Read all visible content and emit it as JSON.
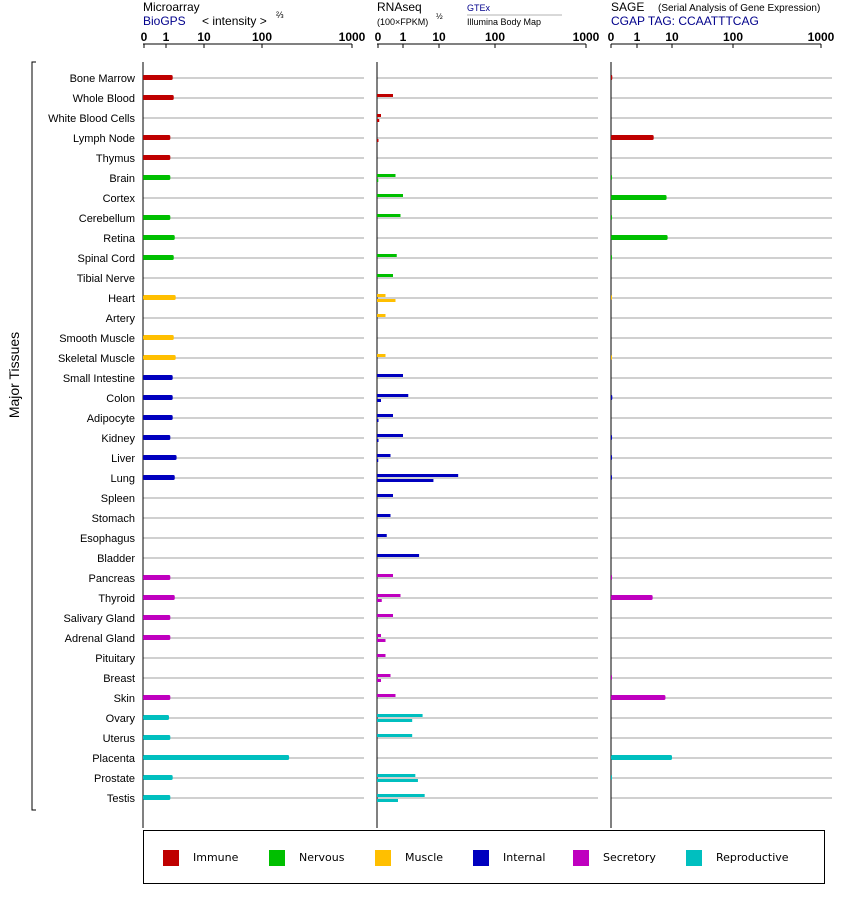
{
  "header": {
    "microarray_title": "Microarray",
    "microarray_source": "BioGPS",
    "microarray_unit": "< intensity >",
    "microarray_unit_exp": "⅔",
    "rnaseq_title": "RNAseq",
    "rnaseq_unit": "(100×FPKM)",
    "rnaseq_unit_exp": "½",
    "rnaseq_source1": "GTEx",
    "rnaseq_source2": "Illumina Body Map",
    "sage_title": "SAGE",
    "sage_subtitle": "(Serial Analysis of Gene Expression)",
    "sage_tag": "CGAP TAG: CCAATTTCAG"
  },
  "y_axis_label": "Major Tissues",
  "colors": {
    "immune": "#bf0000",
    "nervous": "#00bf00",
    "muscle": "#ffbf00",
    "internal": "#0000bf",
    "secretory": "#bf00bf",
    "reproductive": "#00bfbf"
  },
  "legend": [
    {
      "key": "immune",
      "label": "Immune"
    },
    {
      "key": "nervous",
      "label": "Nervous"
    },
    {
      "key": "muscle",
      "label": "Muscle"
    },
    {
      "key": "internal",
      "label": "Internal"
    },
    {
      "key": "secretory",
      "label": "Secretory"
    },
    {
      "key": "reproductive",
      "label": "Reproductive"
    }
  ],
  "chart_data": [
    {
      "type": "bar",
      "panel": "Microarray",
      "orientation": "horizontal",
      "xscale": "pseudo-log",
      "ticks": [
        "0",
        "1",
        "10",
        "100",
        "1000"
      ],
      "xlim": [
        0,
        1000
      ],
      "categories": [
        "Bone Marrow",
        "Whole Blood",
        "White Blood Cells",
        "Lymph Node",
        "Thymus",
        "Brain",
        "Cortex",
        "Cerebellum",
        "Retina",
        "Spinal Cord",
        "Tibial Nerve",
        "Heart",
        "Artery",
        "Smooth Muscle",
        "Skeletal Muscle",
        "Small Intestine",
        "Colon",
        "Adipocyte",
        "Kidney",
        "Liver",
        "Lung",
        "Spleen",
        "Stomach",
        "Esophagus",
        "Bladder",
        "Pancreas",
        "Thyroid",
        "Salivary Gland",
        "Adrenal Gland",
        "Pituitary",
        "Breast",
        "Skin",
        "Ovary",
        "Uterus",
        "Placenta",
        "Prostate",
        "Testis"
      ],
      "groups": [
        "immune",
        "immune",
        "immune",
        "immune",
        "immune",
        "nervous",
        "nervous",
        "nervous",
        "nervous",
        "nervous",
        "nervous",
        "muscle",
        "muscle",
        "muscle",
        "muscle",
        "internal",
        "internal",
        "internal",
        "internal",
        "internal",
        "internal",
        "internal",
        "internal",
        "internal",
        "internal",
        "secretory",
        "secretory",
        "secretory",
        "secretory",
        "secretory",
        "secretory",
        "secretory",
        "reproductive",
        "reproductive",
        "reproductive",
        "reproductive",
        "reproductive"
      ],
      "values": [
        1.5,
        1.6,
        0,
        1.3,
        1.3,
        1.3,
        0,
        1.3,
        1.7,
        1.6,
        0,
        1.8,
        0,
        1.6,
        1.8,
        1.5,
        1.5,
        1.5,
        1.3,
        1.9,
        1.7,
        0,
        0,
        0,
        0,
        1.3,
        1.7,
        1.3,
        1.3,
        0,
        0,
        1.3,
        1.2,
        1.3,
        200,
        1.5,
        1.3
      ]
    },
    {
      "type": "bar",
      "panel": "RNAseq",
      "orientation": "horizontal",
      "xscale": "pseudo-log",
      "ticks": [
        "0",
        "1",
        "10",
        "100",
        "1000"
      ],
      "xlim": [
        0,
        1000
      ],
      "categories": [
        "Bone Marrow",
        "Whole Blood",
        "White Blood Cells",
        "Lymph Node",
        "Thymus",
        "Brain",
        "Cortex",
        "Cerebellum",
        "Retina",
        "Spinal Cord",
        "Tibial Nerve",
        "Heart",
        "Artery",
        "Smooth Muscle",
        "Skeletal Muscle",
        "Small Intestine",
        "Colon",
        "Adipocyte",
        "Kidney",
        "Liver",
        "Lung",
        "Spleen",
        "Stomach",
        "Esophagus",
        "Bladder",
        "Pancreas",
        "Thyroid",
        "Salivary Gland",
        "Adrenal Gland",
        "Pituitary",
        "Breast",
        "Skin",
        "Ovary",
        "Uterus",
        "Placenta",
        "Prostate",
        "Testis"
      ],
      "series": [
        {
          "values": [
            0,
            0.6,
            0.12,
            0,
            0,
            0.7,
            1.0,
            0.9,
            0,
            0.75,
            0.6,
            0.3,
            0.3,
            0,
            0.3,
            1.0,
            1.4,
            0.6,
            1.0,
            0.5,
            22,
            0.6,
            0.5,
            0.35,
            2.8,
            0.6,
            0.9,
            0.6,
            0.12,
            0.3,
            0.5,
            0.7,
            3.5,
            1.8,
            0,
            2.2,
            4.0
          ]
        },
        {
          "values": [
            0,
            0,
            0.05,
            0.02,
            0,
            0.01,
            0,
            0,
            0,
            0,
            0,
            0.7,
            0,
            0,
            0,
            0,
            0.12,
            0.02,
            0.02,
            0.01,
            7,
            0,
            0,
            0,
            0,
            0,
            0.15,
            0,
            0.3,
            0,
            0.12,
            0,
            1.8,
            0,
            0,
            2.6,
            0.8
          ]
        }
      ]
    },
    {
      "type": "bar",
      "panel": "SAGE",
      "orientation": "horizontal",
      "xscale": "pseudo-log",
      "ticks": [
        "0",
        "1",
        "10",
        "100",
        "1000"
      ],
      "xlim": [
        0,
        1000
      ],
      "categories": [
        "Bone Marrow",
        "Whole Blood",
        "White Blood Cells",
        "Lymph Node",
        "Thymus",
        "Brain",
        "Cortex",
        "Cerebellum",
        "Retina",
        "Spinal Cord",
        "Tibial Nerve",
        "Heart",
        "Artery",
        "Smooth Muscle",
        "Skeletal Muscle",
        "Small Intestine",
        "Colon",
        "Adipocyte",
        "Kidney",
        "Liver",
        "Lung",
        "Spleen",
        "Stomach",
        "Esophagus",
        "Bladder",
        "Pancreas",
        "Thyroid",
        "Salivary Gland",
        "Adrenal Gland",
        "Pituitary",
        "Breast",
        "Skin",
        "Ovary",
        "Uterus",
        "Placenta",
        "Prostate",
        "Testis"
      ],
      "values": [
        0.05,
        0,
        0,
        3.0,
        0,
        0.03,
        7,
        0.03,
        7.5,
        0.03,
        0,
        0.02,
        0,
        0,
        0.02,
        0,
        0.05,
        0,
        0.04,
        0.04,
        0.03,
        0,
        0,
        0,
        0,
        0.04,
        2.8,
        0,
        0,
        0,
        0.03,
        6.5,
        0,
        0,
        10,
        0.03,
        0
      ]
    }
  ]
}
